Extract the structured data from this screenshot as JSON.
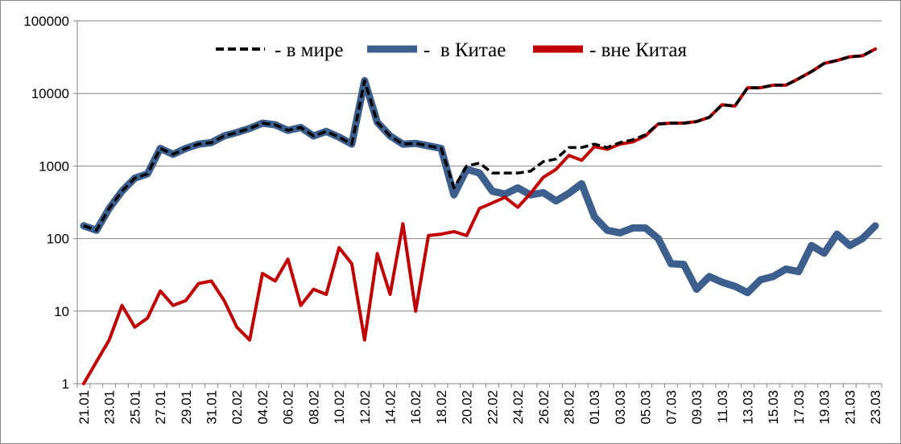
{
  "chart_data": {
    "type": "line",
    "title": "",
    "xlabel": "",
    "ylabel": "",
    "y_scale": "log",
    "ylim": [
      1,
      100000
    ],
    "y_ticks": [
      "1",
      "10",
      "100",
      "1000",
      "10000",
      "100000"
    ],
    "grid": "horizontal",
    "legend_placement": "top",
    "categories": [
      "21.01",
      "22.01",
      "23.01",
      "24.01",
      "25.01",
      "26.01",
      "27.01",
      "28.01",
      "29.01",
      "30.01",
      "31.01",
      "01.02",
      "02.02",
      "03.02",
      "04.02",
      "05.02",
      "06.02",
      "07.02",
      "08.02",
      "09.02",
      "10.02",
      "11.02",
      "12.02",
      "13.02",
      "14.02",
      "15.02",
      "16.02",
      "17.02",
      "18.02",
      "19.02",
      "20.02",
      "21.02",
      "22.02",
      "23.02",
      "24.02",
      "25.02",
      "26.02",
      "27.02",
      "28.02",
      "29.02",
      "01.03",
      "02.03",
      "03.03",
      "04.03",
      "05.03",
      "06.03",
      "07.03",
      "08.03",
      "09.03",
      "10.03",
      "11.03",
      "12.03",
      "13.03",
      "14.03",
      "15.03",
      "16.03",
      "17.03",
      "18.03",
      "19.03",
      "20.03",
      "21.03",
      "22.03",
      "23.03"
    ],
    "x_tick_labels": [
      "21.01",
      "23.01",
      "25.01",
      "27.01",
      "29.01",
      "31.01",
      "02.02",
      "04.02",
      "06.02",
      "08.02",
      "10.02",
      "12.02",
      "14.02",
      "16.02",
      "18.02",
      "20.02",
      "22.02",
      "24.02",
      "26.02",
      "28.02",
      "01.03",
      "03.03",
      "05.03",
      "07.03",
      "09.03",
      "11.03",
      "13.03",
      "15.03",
      "17.03",
      "19.03",
      "21.03",
      "23.03"
    ],
    "series": [
      {
        "name": "- в Китае",
        "color": "#3d5f8e",
        "style": "thick-solid",
        "values": [
          150,
          130,
          260,
          450,
          680,
          780,
          1750,
          1450,
          1750,
          2000,
          2100,
          2600,
          2900,
          3300,
          3900,
          3700,
          3100,
          3400,
          2600,
          3000,
          2500,
          2000,
          15000,
          4000,
          2600,
          2000,
          2050,
          1900,
          1750,
          400,
          900,
          800,
          450,
          410,
          500,
          400,
          430,
          330,
          420,
          570,
          200,
          130,
          120,
          140,
          140,
          100,
          45,
          44,
          20,
          30,
          25,
          22,
          18,
          27,
          30,
          38,
          35,
          80,
          63,
          115,
          80,
          100,
          150
        ]
      },
      {
        "name": "- вне Китая",
        "color": "#c00000",
        "style": "solid",
        "values": [
          1,
          2,
          4,
          12,
          6,
          8,
          19,
          12,
          14,
          24,
          26,
          14,
          6,
          4,
          33,
          26,
          52,
          12,
          20,
          17,
          75,
          45,
          4,
          62,
          17,
          160,
          10,
          110,
          115,
          125,
          110,
          260,
          310,
          370,
          270,
          420,
          700,
          900,
          1400,
          1200,
          1850,
          1700,
          2000,
          2150,
          2600,
          3800,
          3900,
          3900,
          4100,
          4700,
          7000,
          6700,
          12000,
          12000,
          13000,
          13000,
          16000,
          20000,
          26000,
          28500,
          32000,
          33000,
          41000
        ]
      },
      {
        "name": "- в мире",
        "color": "#000000",
        "style": "dashed",
        "values": [
          150,
          130,
          260,
          450,
          680,
          780,
          1750,
          1450,
          1750,
          2000,
          2100,
          2600,
          2900,
          3300,
          3900,
          3700,
          3100,
          3400,
          2600,
          3000,
          2500,
          2000,
          15000,
          4000,
          2600,
          2000,
          2050,
          1900,
          1750,
          500,
          1000,
          1100,
          800,
          800,
          800,
          850,
          1150,
          1250,
          1800,
          1800,
          2000,
          1800,
          2100,
          2300,
          2700,
          3800,
          3900,
          3900,
          4100,
          4700,
          7000,
          6700,
          12000,
          12000,
          13000,
          13000,
          16000,
          20000,
          26000,
          28500,
          32000,
          33000,
          41000
        ]
      }
    ]
  },
  "legend": [
    {
      "key": "world",
      "label": "- в мире"
    },
    {
      "key": "china",
      "label": "-  в Китае"
    },
    {
      "key": "outside",
      "label": "- вне Китая"
    }
  ]
}
